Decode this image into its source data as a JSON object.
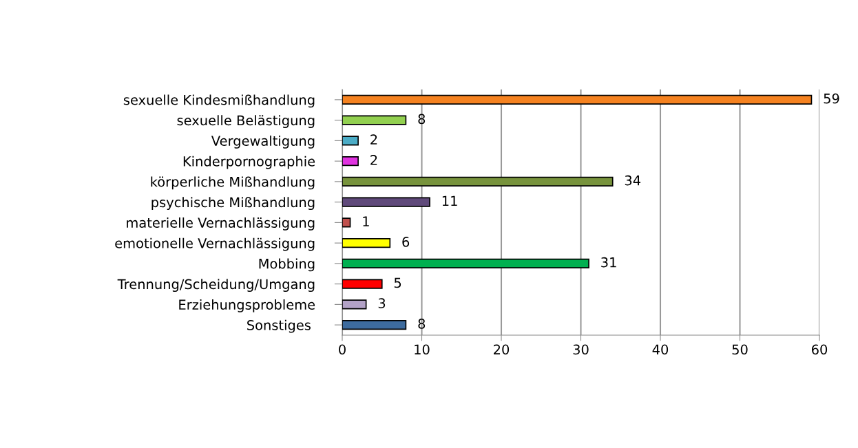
{
  "chart_data": {
    "type": "bar",
    "orientation": "horizontal",
    "categories": [
      "sexuelle Kindesmißhandlung",
      "sexuelle Belästigung",
      "Vergewaltigung",
      "Kinderpornographie",
      "körperliche Mißhandlung",
      "psychische Mißhandlung",
      "materielle Vernachlässigung",
      "emotionelle Vernachlässigung",
      "Mobbing",
      "Trennung/Scheidung/Umgang",
      "Erziehungsprobleme",
      "Sonstiges "
    ],
    "values": [
      59,
      8,
      2,
      2,
      34,
      11,
      1,
      6,
      31,
      5,
      3,
      8
    ],
    "colors": [
      "#f58220",
      "#92d050",
      "#4bacc6",
      "#e033e0",
      "#77933c",
      "#604a7b",
      "#c0504d",
      "#ffff00",
      "#00b050",
      "#ff0000",
      "#b3a2c7",
      "#3d6b9e"
    ],
    "xlim": [
      0,
      60
    ],
    "xticks": [
      0,
      10,
      20,
      30,
      40,
      50,
      60
    ],
    "grid": "x",
    "data_labels": true
  }
}
